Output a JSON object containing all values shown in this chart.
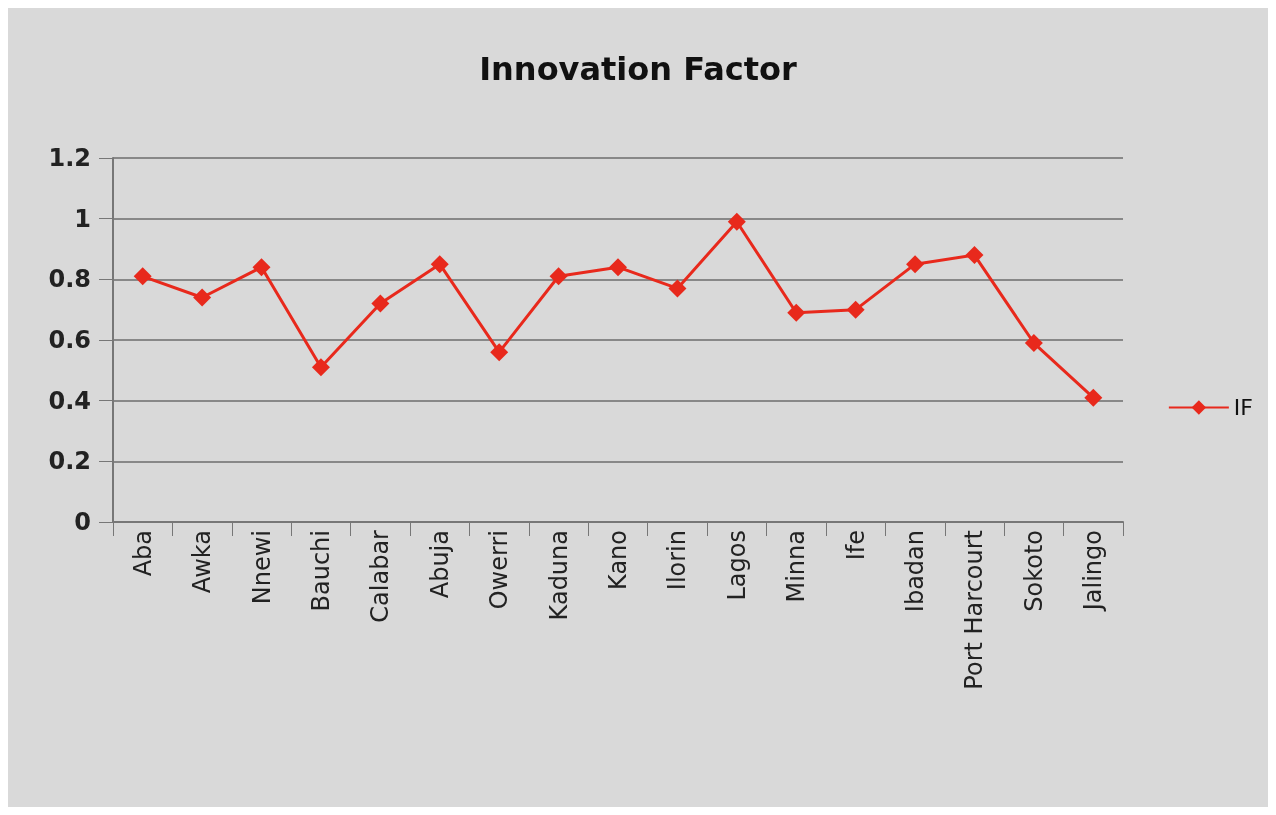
{
  "chart_data": {
    "type": "line",
    "title": "Innovation Factor",
    "categories": [
      "Aba",
      "Awka",
      "Nnewi",
      "Bauchi",
      "Calabar",
      "Abuja",
      "Owerri",
      "Kaduna",
      "Kano",
      "Ilorin",
      "Lagos",
      "Minna",
      "Ife",
      "Ibadan",
      "Port Harcourt",
      "Sokoto",
      "Jalingo"
    ],
    "series": [
      {
        "name": "IF",
        "color": "#e8291c",
        "values": [
          0.81,
          0.74,
          0.84,
          0.51,
          0.72,
          0.85,
          0.56,
          0.81,
          0.84,
          0.77,
          0.99,
          0.69,
          0.7,
          0.85,
          0.88,
          0.59,
          0.41
        ]
      }
    ],
    "ylim": [
      0,
      1.2
    ],
    "yticks": [
      0,
      0.2,
      0.4,
      0.6,
      0.8,
      1,
      1.2
    ],
    "grid": "y",
    "legend": "right",
    "marker": "diamond",
    "line_style": "solid"
  }
}
